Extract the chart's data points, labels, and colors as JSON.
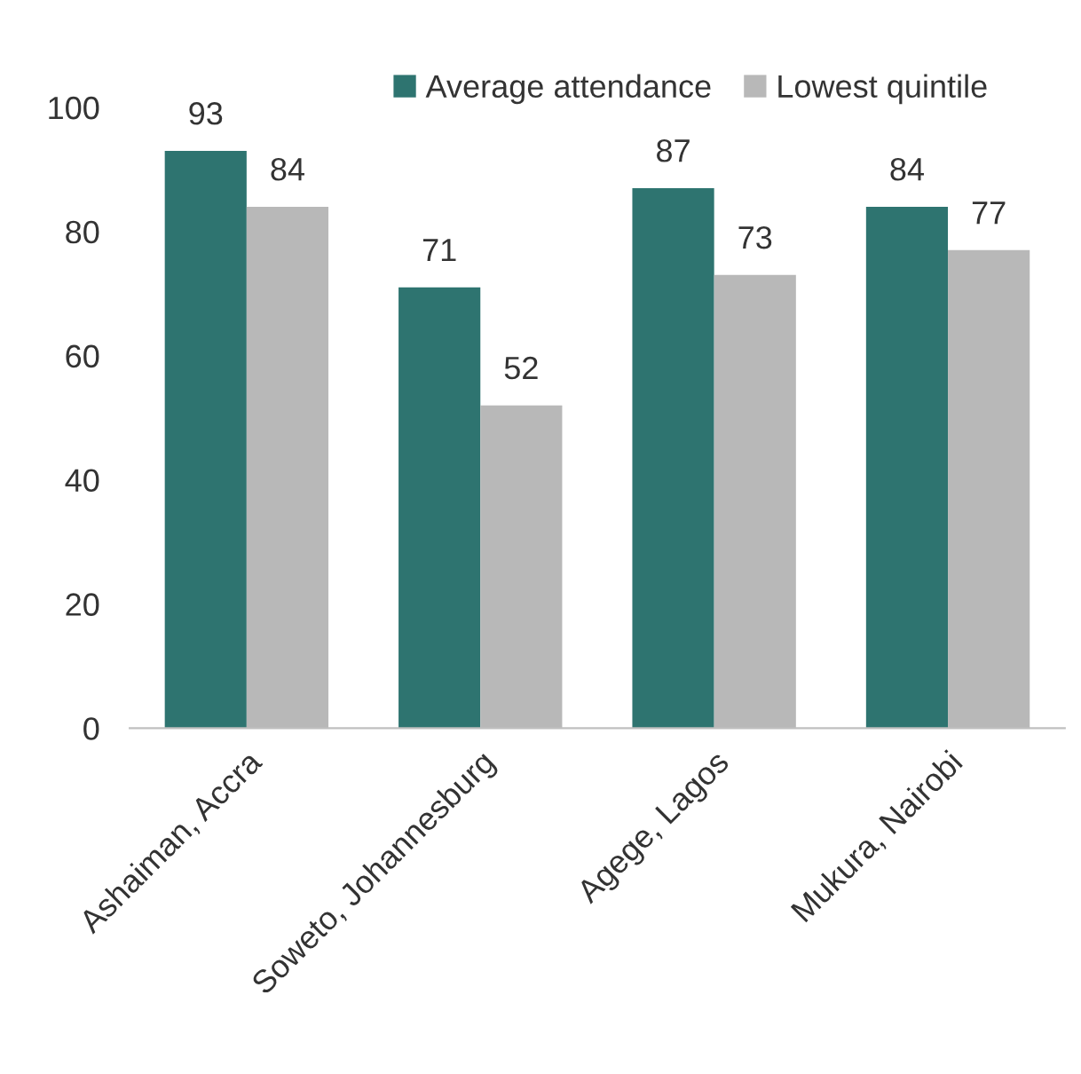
{
  "chart_data": {
    "type": "bar",
    "categories": [
      "Ashaiman, Accra",
      "Soweto, Johannesburg",
      "Agege, Lagos",
      "Mukura, Nairobi"
    ],
    "series": [
      {
        "name": "Average attendance",
        "color": "#2e7470",
        "values": [
          93,
          71,
          87,
          84
        ]
      },
      {
        "name": "Lowest quintile",
        "color": "#b8b8b8",
        "values": [
          84,
          52,
          73,
          77
        ]
      }
    ],
    "ylim": [
      0,
      100
    ],
    "yticks": [
      0,
      20,
      40,
      60,
      80,
      100
    ],
    "grid": false,
    "legend": "top",
    "data_labels": true
  }
}
